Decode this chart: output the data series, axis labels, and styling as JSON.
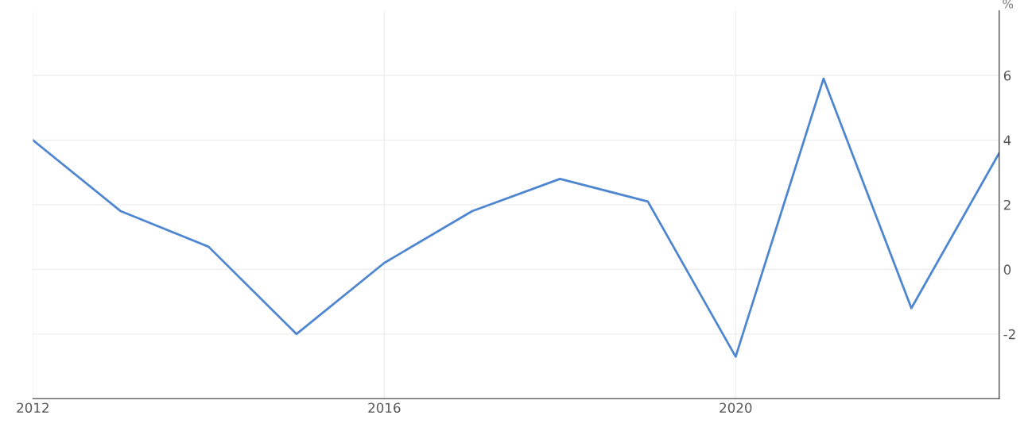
{
  "chart_data": {
    "type": "line",
    "ylabel": "%",
    "x": [
      2012,
      2013,
      2014,
      2015,
      2016,
      2017,
      2018,
      2019,
      2020,
      2021,
      2022,
      2023
    ],
    "series": [
      {
        "color": "#4f86d0",
        "values": [
          4.0,
          1.8,
          0.7,
          -2.0,
          0.2,
          1.8,
          2.8,
          2.1,
          -2.7,
          5.9,
          -1.2,
          3.6
        ]
      }
    ],
    "xlim": [
      2012,
      2023
    ],
    "xticks": [
      2012,
      2016,
      2020
    ],
    "ylim": [
      -4,
      8
    ],
    "yticks": [
      {
        "value": -2,
        "label": "-2"
      },
      0,
      2,
      4,
      6
    ],
    "grid": true,
    "legend": false,
    "marker": "none",
    "line_style": "solid"
  }
}
